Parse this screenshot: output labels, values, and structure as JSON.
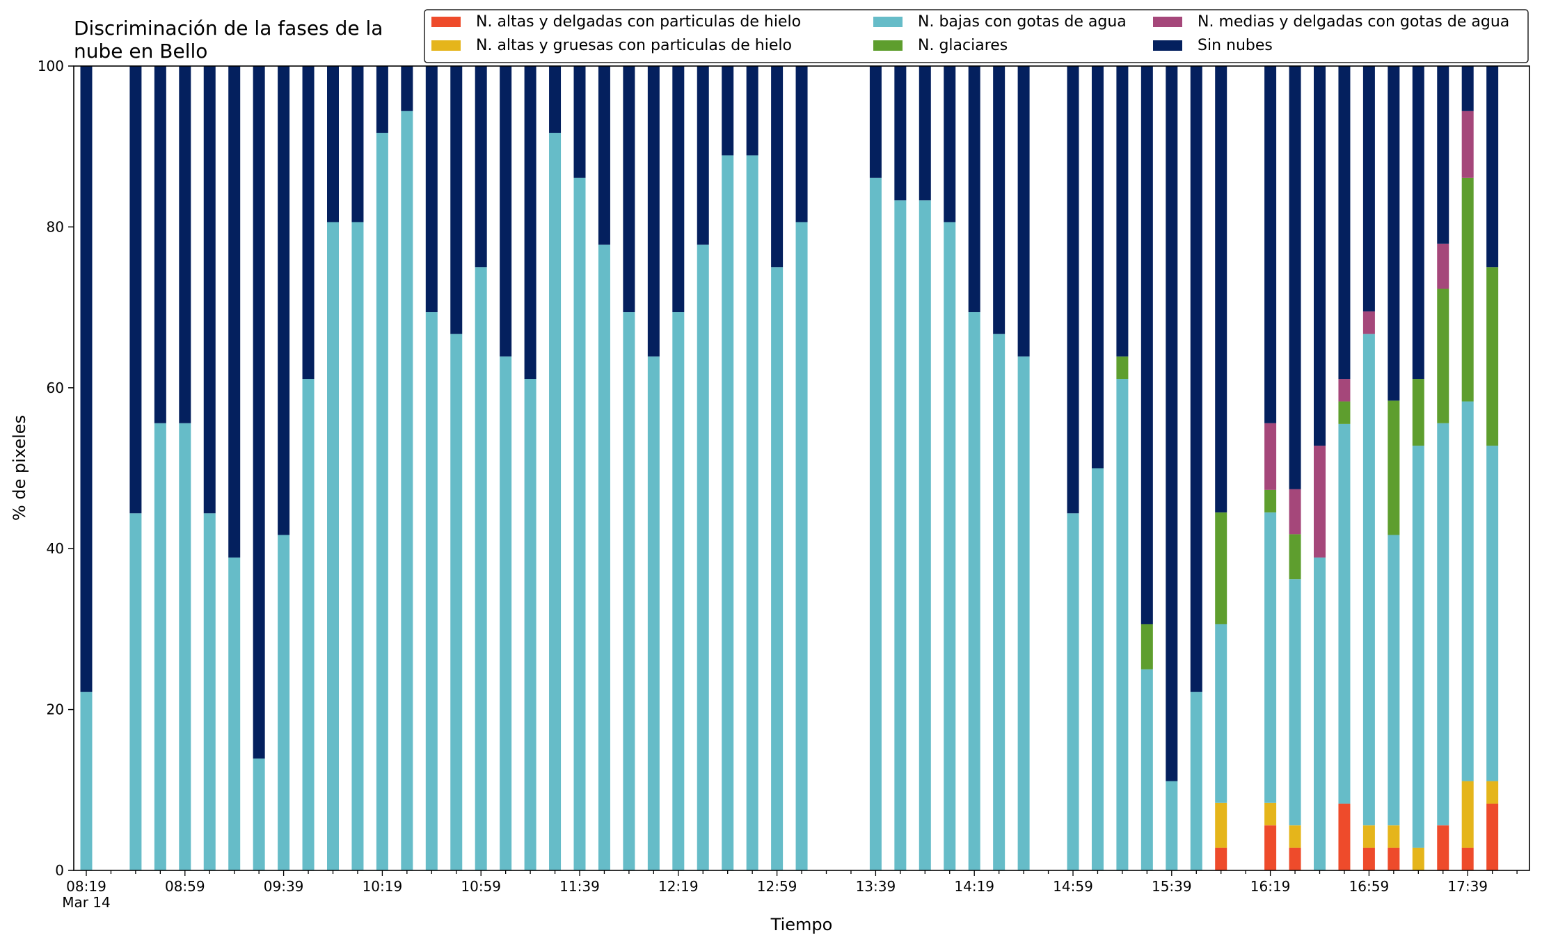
{
  "chart_data": {
    "type": "bar",
    "stacked": true,
    "title": "Discriminación de la fases de la\nnube en Bello",
    "xlabel": "Tiempo",
    "ylabel": "% de pixeles",
    "ylim": [
      0,
      100
    ],
    "yticks": [
      0,
      20,
      40,
      60,
      80,
      100
    ],
    "x_start": "08:19",
    "x_step_minutes": 10,
    "x_slots": 59,
    "xtick_labels": [
      {
        "slot": 0,
        "label": "08:19",
        "sublabel": "Mar 14"
      },
      {
        "slot": 4,
        "label": "08:59"
      },
      {
        "slot": 8,
        "label": "09:39"
      },
      {
        "slot": 12,
        "label": "10:19"
      },
      {
        "slot": 16,
        "label": "10:59"
      },
      {
        "slot": 20,
        "label": "11:39"
      },
      {
        "slot": 24,
        "label": "12:19"
      },
      {
        "slot": 28,
        "label": "12:59"
      },
      {
        "slot": 32,
        "label": "13:39"
      },
      {
        "slot": 36,
        "label": "14:19"
      },
      {
        "slot": 40,
        "label": "14:59"
      },
      {
        "slot": 44,
        "label": "15:39"
      },
      {
        "slot": 48,
        "label": "16:19"
      },
      {
        "slot": 52,
        "label": "16:59"
      },
      {
        "slot": 56,
        "label": "17:39"
      }
    ],
    "legend_position": "top",
    "series": [
      {
        "name": "N. altas y delgadas con particulas de hielo",
        "color": "#EE4B2B"
      },
      {
        "name": "N. altas y gruesas con particulas de hielo",
        "color": "#E5B51B"
      },
      {
        "name": "N. bajas con gotas de agua",
        "color": "#66BCC8"
      },
      {
        "name": "N. glaciares",
        "color": "#5E9E2E"
      },
      {
        "name": "N. medias y delgadas con gotas de agua",
        "color": "#A5477A"
      },
      {
        "name": "Sin nubes",
        "color": "#04205E"
      }
    ],
    "bars": [
      {
        "slot": 0,
        "values": [
          0,
          0,
          22.2,
          0,
          0,
          77.8
        ]
      },
      {
        "slot": 2,
        "values": [
          0,
          0,
          44.4,
          0,
          0,
          55.6
        ]
      },
      {
        "slot": 3,
        "values": [
          0,
          0,
          55.6,
          0,
          0,
          44.4
        ]
      },
      {
        "slot": 4,
        "values": [
          0,
          0,
          55.6,
          0,
          0,
          44.4
        ]
      },
      {
        "slot": 5,
        "values": [
          0,
          0,
          44.4,
          0,
          0,
          55.6
        ]
      },
      {
        "slot": 6,
        "values": [
          0,
          0,
          38.9,
          0,
          0,
          61.1
        ]
      },
      {
        "slot": 7,
        "values": [
          0,
          0,
          13.9,
          0,
          0,
          86.1
        ]
      },
      {
        "slot": 8,
        "values": [
          0,
          0,
          41.7,
          0,
          0,
          58.3
        ]
      },
      {
        "slot": 9,
        "values": [
          0,
          0,
          61.1,
          0,
          0,
          38.9
        ]
      },
      {
        "slot": 10,
        "values": [
          0,
          0,
          80.6,
          0,
          0,
          19.4
        ]
      },
      {
        "slot": 11,
        "values": [
          0,
          0,
          80.6,
          0,
          0,
          19.4
        ]
      },
      {
        "slot": 12,
        "values": [
          0,
          0,
          91.7,
          0,
          0,
          8.3
        ]
      },
      {
        "slot": 13,
        "values": [
          0,
          0,
          94.4,
          0,
          0,
          5.6
        ]
      },
      {
        "slot": 14,
        "values": [
          0,
          0,
          69.4,
          0,
          0,
          30.6
        ]
      },
      {
        "slot": 15,
        "values": [
          0,
          0,
          66.7,
          0,
          0,
          33.3
        ]
      },
      {
        "slot": 16,
        "values": [
          0,
          0,
          75.0,
          0,
          0,
          25.0
        ]
      },
      {
        "slot": 17,
        "values": [
          0,
          0,
          63.9,
          0,
          0,
          36.1
        ]
      },
      {
        "slot": 18,
        "values": [
          0,
          0,
          61.1,
          0,
          0,
          38.9
        ]
      },
      {
        "slot": 19,
        "values": [
          0,
          0,
          91.7,
          0,
          0,
          8.3
        ]
      },
      {
        "slot": 20,
        "values": [
          0,
          0,
          86.1,
          0,
          0,
          13.9
        ]
      },
      {
        "slot": 21,
        "values": [
          0,
          0,
          77.8,
          0,
          0,
          22.2
        ]
      },
      {
        "slot": 22,
        "values": [
          0,
          0,
          69.4,
          0,
          0,
          30.6
        ]
      },
      {
        "slot": 23,
        "values": [
          0,
          0,
          63.9,
          0,
          0,
          36.1
        ]
      },
      {
        "slot": 24,
        "values": [
          0,
          0,
          69.4,
          0,
          0,
          30.6
        ]
      },
      {
        "slot": 25,
        "values": [
          0,
          0,
          77.8,
          0,
          0,
          22.2
        ]
      },
      {
        "slot": 26,
        "values": [
          0,
          0,
          88.9,
          0,
          0,
          11.1
        ]
      },
      {
        "slot": 27,
        "values": [
          0,
          0,
          88.9,
          0,
          0,
          11.1
        ]
      },
      {
        "slot": 28,
        "values": [
          0,
          0,
          75.0,
          0,
          0,
          25.0
        ]
      },
      {
        "slot": 29,
        "values": [
          0,
          0,
          80.6,
          0,
          0,
          19.4
        ]
      },
      {
        "slot": 32,
        "values": [
          0,
          0,
          86.1,
          0,
          0,
          13.9
        ]
      },
      {
        "slot": 33,
        "values": [
          0,
          0,
          83.3,
          0,
          0,
          16.7
        ]
      },
      {
        "slot": 34,
        "values": [
          0,
          0,
          83.3,
          0,
          0,
          16.7
        ]
      },
      {
        "slot": 35,
        "values": [
          0,
          0,
          80.6,
          0,
          0,
          19.4
        ]
      },
      {
        "slot": 36,
        "values": [
          0,
          0,
          69.4,
          0,
          0,
          30.6
        ]
      },
      {
        "slot": 37,
        "values": [
          0,
          0,
          66.7,
          0,
          0,
          33.3
        ]
      },
      {
        "slot": 38,
        "values": [
          0,
          0,
          63.9,
          0,
          0,
          36.1
        ]
      },
      {
        "slot": 40,
        "values": [
          0,
          0,
          44.4,
          0,
          0,
          55.6
        ]
      },
      {
        "slot": 41,
        "values": [
          0,
          0,
          50.0,
          0,
          0,
          50.0
        ]
      },
      {
        "slot": 42,
        "values": [
          0,
          0,
          61.1,
          2.8,
          0,
          36.1
        ]
      },
      {
        "slot": 43,
        "values": [
          0,
          0,
          25.0,
          5.6,
          0,
          69.4
        ]
      },
      {
        "slot": 44,
        "values": [
          0,
          0,
          11.1,
          0,
          0,
          88.9
        ]
      },
      {
        "slot": 45,
        "values": [
          0,
          0,
          22.2,
          0,
          0,
          77.8
        ]
      },
      {
        "slot": 46,
        "values": [
          2.8,
          5.6,
          22.2,
          13.9,
          0,
          55.5
        ]
      },
      {
        "slot": 48,
        "values": [
          5.6,
          2.8,
          36.1,
          2.8,
          8.3,
          44.4
        ]
      },
      {
        "slot": 49,
        "values": [
          2.8,
          2.8,
          30.6,
          5.6,
          5.6,
          52.6
        ]
      },
      {
        "slot": 50,
        "values": [
          0,
          0,
          38.9,
          0,
          13.9,
          47.2
        ]
      },
      {
        "slot": 51,
        "values": [
          8.3,
          0,
          47.2,
          2.8,
          2.8,
          38.9
        ]
      },
      {
        "slot": 52,
        "values": [
          2.8,
          2.8,
          61.1,
          0,
          2.8,
          30.5
        ]
      },
      {
        "slot": 53,
        "values": [
          2.8,
          2.8,
          36.1,
          16.7,
          0,
          41.6
        ]
      },
      {
        "slot": 54,
        "values": [
          0,
          2.8,
          50.0,
          8.3,
          0,
          38.9
        ]
      },
      {
        "slot": 55,
        "values": [
          5.6,
          0,
          50.0,
          16.7,
          5.6,
          22.1
        ]
      },
      {
        "slot": 56,
        "values": [
          2.8,
          8.3,
          47.2,
          27.8,
          8.3,
          5.6
        ]
      },
      {
        "slot": 57,
        "values": [
          8.3,
          2.8,
          41.7,
          22.2,
          0,
          25.0
        ]
      }
    ]
  }
}
